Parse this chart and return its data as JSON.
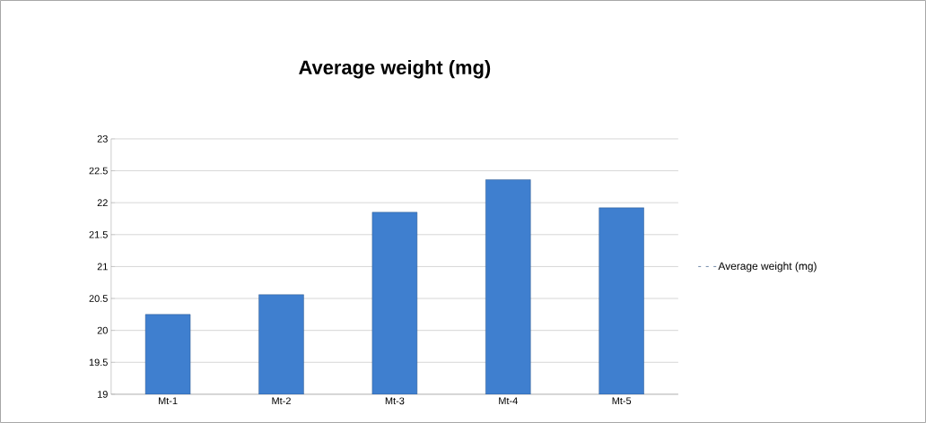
{
  "chart_data": {
    "type": "bar",
    "title": "Average weight (mg)",
    "categories": [
      "Mt-1",
      "Mt-2",
      "Mt-3",
      "Mt-4",
      "Mt-5"
    ],
    "series": [
      {
        "name": "Average weight (mg)",
        "color": "#3f7fcf",
        "values": [
          20.25,
          20.56,
          21.85,
          22.36,
          21.92
        ]
      }
    ],
    "ylim": [
      19,
      23
    ],
    "yticks": [
      19,
      19.5,
      20,
      20.5,
      21,
      21.5,
      22,
      22.5,
      23
    ],
    "grid": "y",
    "legend": "right"
  }
}
